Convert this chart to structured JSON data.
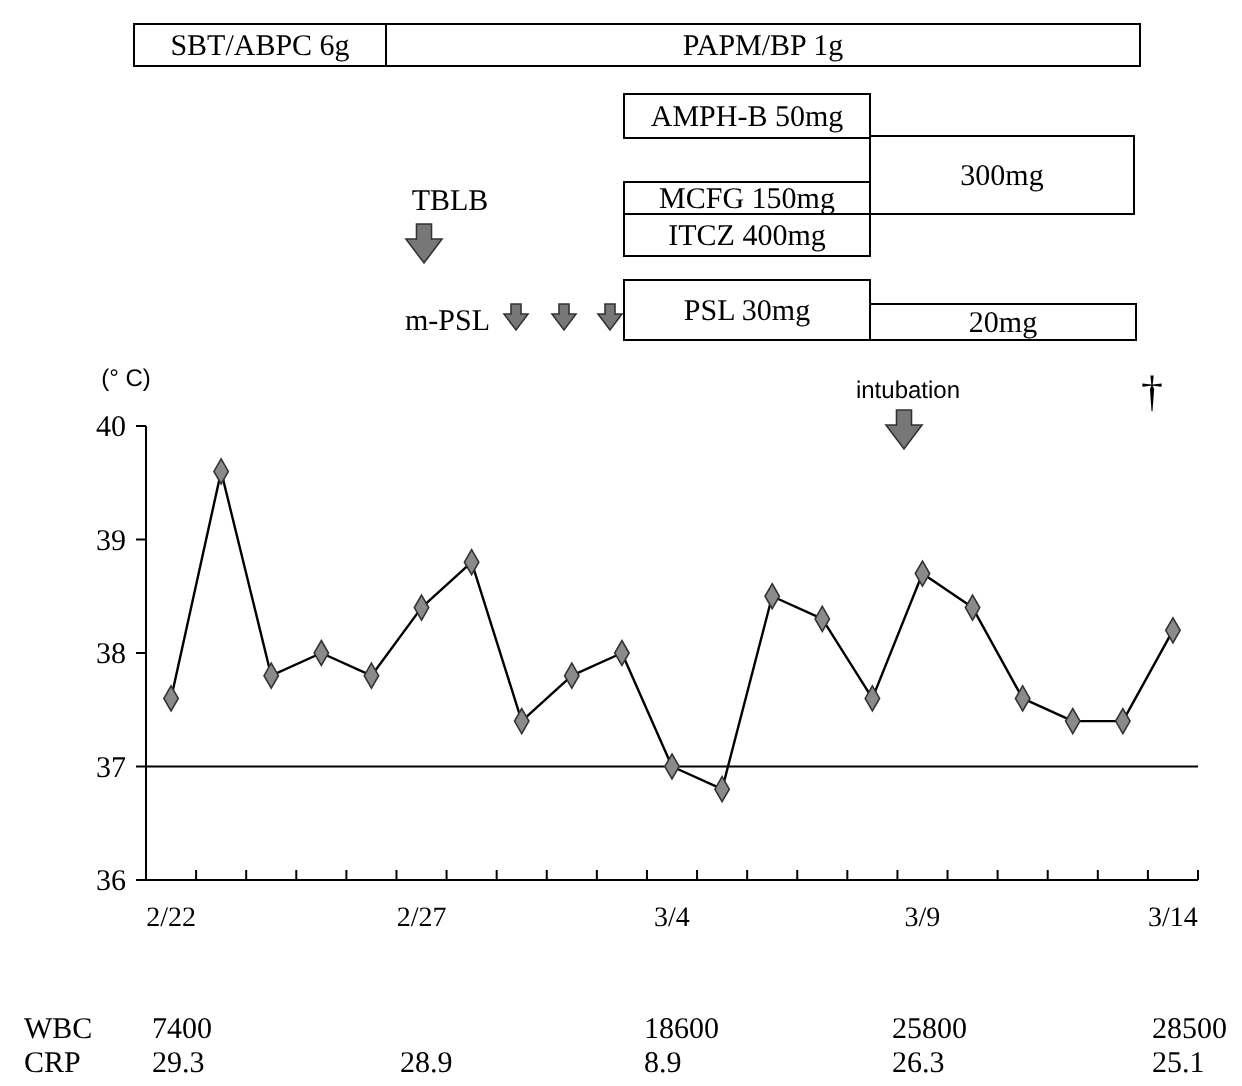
{
  "chart_data": {
    "type": "line",
    "ylabel": "(° C)",
    "categories": [
      "2/22",
      null,
      null,
      null,
      null,
      "2/27",
      null,
      null,
      null,
      null,
      "3/4",
      null,
      null,
      null,
      null,
      "3/9",
      null,
      null,
      null,
      null,
      "3/14"
    ],
    "series": [
      {
        "color": "#000000",
        "values": [
          37.6,
          39.6,
          37.8,
          38.0,
          37.8,
          38.4,
          38.8,
          37.4,
          37.8,
          38.0,
          37.0,
          36.8,
          38.5,
          38.3,
          37.6,
          38.7,
          38.4,
          37.6,
          37.4,
          37.4,
          38.2
        ]
      }
    ],
    "ylim": [
      36,
      40
    ],
    "yticks": [
      36,
      37,
      38,
      39,
      40
    ],
    "marker": "diamond",
    "grid": false,
    "ref_lines": [
      {
        "axis": "y",
        "value": 37,
        "color": "#000000"
      }
    ],
    "annotations": [
      "SBT/ABPC 6g",
      "PAPM/BP 1g",
      "AMPH-B 50mg",
      "300mg",
      "MCFG 150mg",
      "ITCZ 400mg",
      "TBLB",
      "m-PSL",
      "PSL 30mg",
      "20mg",
      "intubation",
      "†",
      "WBC",
      "7400",
      "18600",
      "25800",
      "28500",
      "CRP",
      "29.3",
      "28.9",
      "8.9",
      "26.3",
      "25.1"
    ]
  }
}
